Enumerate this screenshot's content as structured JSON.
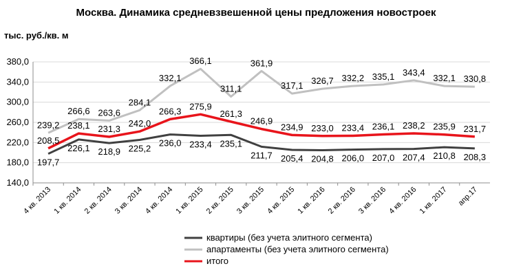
{
  "chart_data": {
    "type": "line",
    "title": "Москва. Динамика средневзвешенной цены предложения новостроек",
    "ylabel": "тыс. руб./кв. м",
    "ylim": [
      140,
      380
    ],
    "yticks": [
      "140,0",
      "180,0",
      "220,0",
      "260,0",
      "300,0",
      "340,0",
      "380,0"
    ],
    "grid": true,
    "legend_position": "bottom",
    "categories": [
      "4 кв. 2013",
      "1 кв. 2014",
      "2 кв. 2014",
      "3 кв. 2014",
      "4 кв. 2014",
      "1 кв. 2015",
      "2 кв. 2015",
      "3 кв. 2015",
      "4 кв. 2015",
      "1 кв. 2016",
      "2 кв. 2016",
      "3 кв. 2016",
      "4 кв. 2016",
      "1 кв. 2017",
      "апр.17"
    ],
    "series": [
      {
        "name": "квартиры (без учета элитного сегмента)",
        "color": "#404040",
        "values": [
          197.7,
          226.1,
          218.9,
          225.2,
          236.0,
          233.4,
          235.1,
          211.7,
          205.4,
          204.8,
          206.0,
          207.0,
          207.4,
          210.8,
          208.3
        ],
        "labels": [
          "197,7",
          "226,1",
          "218,9",
          "225,2",
          "236,0",
          "233,4",
          "235,1",
          "211,7",
          "205,4",
          "204,8",
          "206,0",
          "207,0",
          "207,4",
          "210,8",
          "208,3"
        ]
      },
      {
        "name": "апартаменты (без учета элитного сегмента)",
        "color": "#c0c0c0",
        "values": [
          239.2,
          266.6,
          263.6,
          284.1,
          332.1,
          366.1,
          311.1,
          361.9,
          317.1,
          326.7,
          332.2,
          335.1,
          343.4,
          332.1,
          330.8
        ],
        "labels": [
          "239,2",
          "266,6",
          "263,6",
          "284,1",
          "332,1",
          "366,1",
          "311,1",
          "361,9",
          "317,1",
          "326,7",
          "332,2",
          "335,1",
          "343,4",
          "332,1",
          "330,8"
        ]
      },
      {
        "name": "итого",
        "color": "#e8141b",
        "values": [
          208.5,
          238.1,
          231.3,
          242.0,
          266.3,
          275.9,
          261.3,
          246.9,
          234.9,
          233.0,
          233.4,
          236.1,
          238.2,
          235.9,
          231.7
        ],
        "labels": [
          "208,5",
          "238,1",
          "231,3",
          "242,0",
          "266,3",
          "275,9",
          "261,3",
          "246,9",
          "234,9",
          "233,0",
          "233,4",
          "236,1",
          "238,2",
          "235,9",
          "231,7"
        ]
      }
    ]
  }
}
